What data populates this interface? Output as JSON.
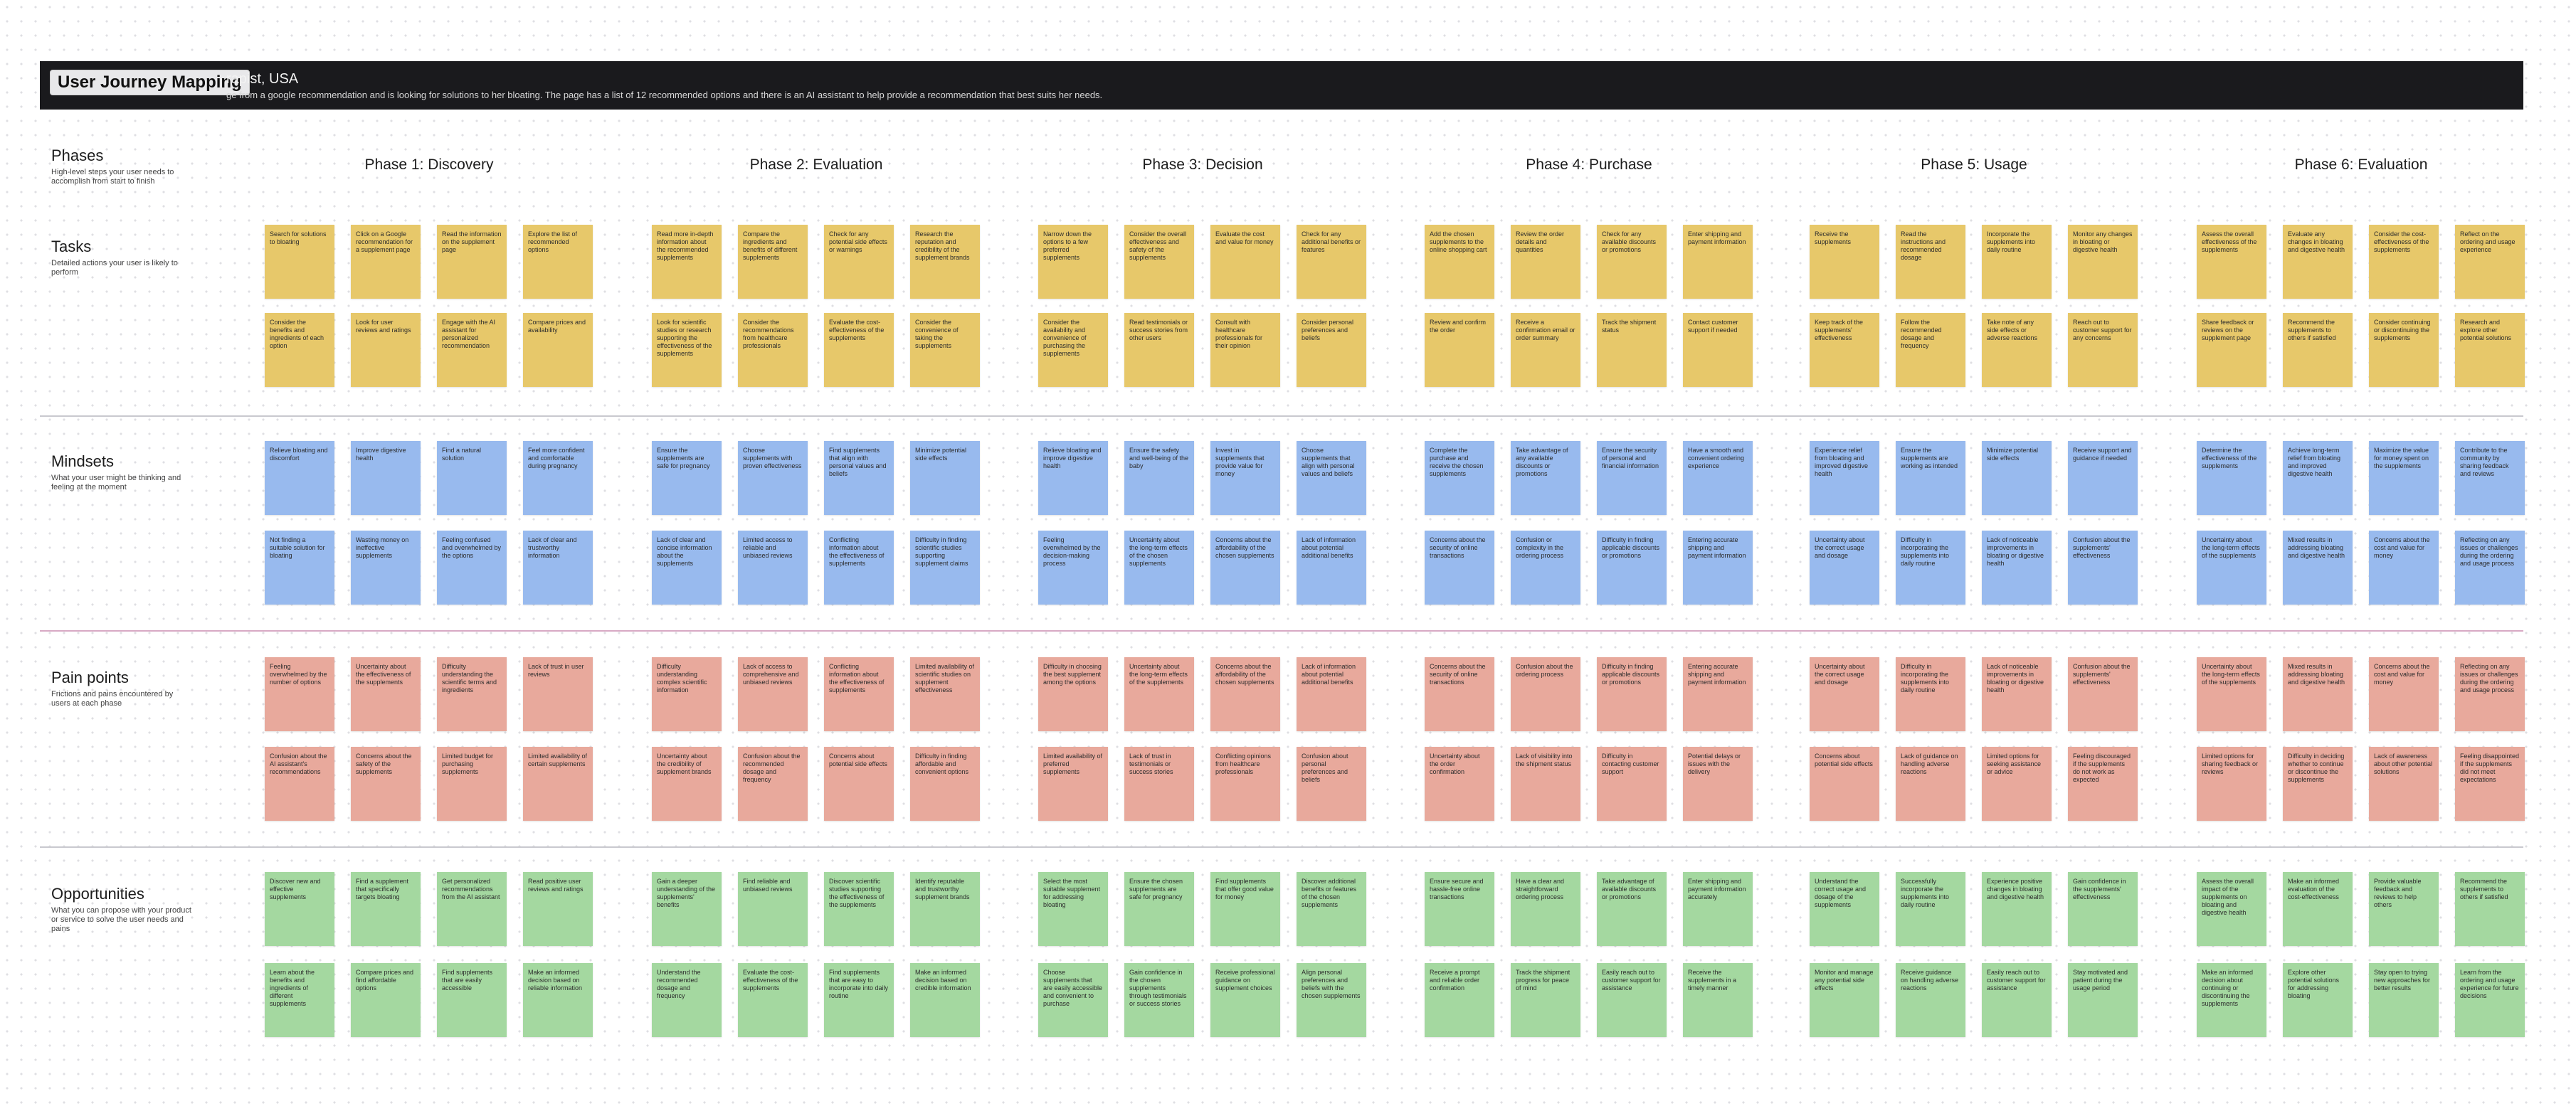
{
  "banner": {
    "title": "User Journey Mapping",
    "persona": "rapist, USA",
    "scenario": "ge from a google recommendation and is looking for solutions to her bloating. The page has a list of 12 recommended options and there is an AI assistant to help provide a recommendation that best suits her needs."
  },
  "colors": {
    "task": "#e7c86a",
    "mindset": "#98baee",
    "pain": "#e8a99c",
    "opportunity": "#a4d8a0",
    "banner": "#1a1a1d"
  },
  "rows": [
    {
      "title": "Phases",
      "desc": "High-level steps your user needs to accomplish from start to finish"
    },
    {
      "title": "Tasks",
      "desc": "Detailed actions your user is likely to perform"
    },
    {
      "title": "Mindsets",
      "desc": "What your user might be thinking and feeling at the moment"
    },
    {
      "title": "Pain points",
      "desc": "Frictions and pains encountered by users at each phase"
    },
    {
      "title": "Opportunities",
      "desc": "What you can propose with your product or service to solve the user needs and pains"
    }
  ],
  "phases": [
    {
      "name": "Phase 1: Discovery",
      "tasks": [
        "Search for solutions to bloating",
        "Click on a Google recommendation for a supplement page",
        "Read the information on the supplement page",
        "Explore the list of recommended options",
        "Consider the benefits and ingredients of each option",
        "Look for user reviews and ratings",
        "Engage with the AI assistant for personalized recommendation",
        "Compare prices and availability"
      ],
      "mindsets": [
        "Relieve bloating and discomfort",
        "Improve digestive health",
        "Find a natural solution",
        "Feel more confident and comfortable during pregnancy",
        "Not finding a suitable solution for bloating",
        "Wasting money on ineffective supplements",
        "Feeling confused and overwhelmed by the options",
        "Lack of clear and trustworthy information"
      ],
      "pains": [
        "Feeling overwhelmed by the number of options",
        "Uncertainty about the effectiveness of the supplements",
        "Difficulty understanding the scientific terms and ingredients",
        "Lack of trust in user reviews",
        "Confusion about the AI assistant's recommendations",
        "Concerns about the safety of the supplements",
        "Limited budget for purchasing supplements",
        "Limited availability of certain supplements"
      ],
      "opps": [
        "Discover new and effective supplements",
        "Find a supplement that specifically targets bloating",
        "Get personalized recommendations from the AI assistant",
        "Read positive user reviews and ratings",
        "Learn about the benefits and ingredients of different supplements",
        "Compare prices and find affordable options",
        "Find supplements that are easily accessible",
        "Make an informed decision based on reliable information"
      ]
    },
    {
      "name": "Phase 2: Evaluation",
      "tasks": [
        "Read more in-depth information about the recommended supplements",
        "Compare the ingredients and benefits of different supplements",
        "Check for any potential side effects or warnings",
        "Research the reputation and credibility of the supplement brands",
        "Look for scientific studies or research supporting the effectiveness of the supplements",
        "Consider the recommendations from healthcare professionals",
        "Evaluate the cost-effectiveness of the supplements",
        "Consider the convenience of taking the supplements"
      ],
      "mindsets": [
        "Ensure the supplements are safe for pregnancy",
        "Choose supplements with proven effectiveness",
        "Find supplements that align with personal values and beliefs",
        "Minimize potential side effects",
        "Lack of clear and concise information about the supplements",
        "Limited access to reliable and unbiased reviews",
        "Conflicting information about the effectiveness of supplements",
        "Difficulty in finding scientific studies supporting supplement claims"
      ],
      "pains": [
        "Difficulty understanding complex scientific information",
        "Lack of access to comprehensive and unbiased reviews",
        "Conflicting information about the effectiveness of supplements",
        "Limited availability of scientific studies on supplement effectiveness",
        "Uncertainty about the credibility of supplement brands",
        "Confusion about the recommended dosage and frequency",
        "Concerns about potential side effects",
        "Difficulty in finding affordable and convenient options"
      ],
      "opps": [
        "Gain a deeper understanding of the supplements' benefits",
        "Find reliable and unbiased reviews",
        "Discover scientific studies supporting the effectiveness of the supplements",
        "Identify reputable and trustworthy supplement brands",
        "Understand the recommended dosage and frequency",
        "Evaluate the cost-effectiveness of the supplements",
        "Find supplements that are easy to incorporate into daily routine",
        "Make an informed decision based on credible information"
      ]
    },
    {
      "name": "Phase 3: Decision",
      "tasks": [
        "Narrow down the options to a few preferred supplements",
        "Consider the overall effectiveness and safety of the supplements",
        "Evaluate the cost and value for money",
        "Check for any additional benefits or features",
        "Consider the availability and convenience of purchasing the supplements",
        "Read testimonials or success stories from other users",
        "Consult with healthcare professionals for their opinion",
        "Consider personal preferences and beliefs"
      ],
      "mindsets": [
        "Relieve bloating and improve digestive health",
        "Ensure the safety and well-being of the baby",
        "Invest in supplements that provide value for money",
        "Choose supplements that align with personal values and beliefs",
        "Feeling overwhelmed by the decision-making process",
        "Uncertainty about the long-term effects of the chosen supplements",
        "Concerns about the affordability of the chosen supplements",
        "Lack of information about potential additional benefits"
      ],
      "pains": [
        "Difficulty in choosing the best supplement among the options",
        "Uncertainty about the long-term effects of the supplements",
        "Concerns about the affordability of the chosen supplements",
        "Lack of information about potential additional benefits",
        "Limited availability of preferred supplements",
        "Lack of trust in testimonials or success stories",
        "Conflicting opinions from healthcare professionals",
        "Confusion about personal preferences and beliefs"
      ],
      "opps": [
        "Select the most suitable supplement for addressing bloating",
        "Ensure the chosen supplements are safe for pregnancy",
        "Find supplements that offer good value for money",
        "Discover additional benefits or features of the chosen supplements",
        "Choose supplements that are easily accessible and convenient to purchase",
        "Gain confidence in the chosen supplements through testimonials or success stories",
        "Receive professional guidance on supplement choices",
        "Align personal preferences and beliefs with the chosen supplements"
      ]
    },
    {
      "name": "Phase 4: Purchase",
      "tasks": [
        "Add the chosen supplements to the online shopping cart",
        "Review the order details and quantities",
        "Check for any available discounts or promotions",
        "Enter shipping and payment information",
        "Review and confirm the order",
        "Receive a confirmation email or order summary",
        "Track the shipment status",
        "Contact customer support if needed"
      ],
      "mindsets": [
        "Complete the purchase and receive the chosen supplements",
        "Take advantage of any available discounts or promotions",
        "Ensure the security of personal and financial information",
        "Have a smooth and convenient ordering experience",
        "Concerns about the security of online transactions",
        "Confusion or complexity in the ordering process",
        "Difficulty in finding applicable discounts or promotions",
        "Entering accurate shipping and payment information"
      ],
      "pains": [
        "Concerns about the security of online transactions",
        "Confusion about the ordering process",
        "Difficulty in finding applicable discounts or promotions",
        "Entering accurate shipping and payment information",
        "Uncertainty about the order confirmation",
        "Lack of visibility into the shipment status",
        "Difficulty in contacting customer support",
        "Potential delays or issues with the delivery"
      ],
      "opps": [
        "Ensure secure and hassle-free online transactions",
        "Have a clear and straightforward ordering process",
        "Take advantage of available discounts or promotions",
        "Enter shipping and payment information accurately",
        "Receive a prompt and reliable order confirmation",
        "Track the shipment progress for peace of mind",
        "Easily reach out to customer support for assistance",
        "Receive the supplements in a timely manner"
      ]
    },
    {
      "name": "Phase 5: Usage",
      "tasks": [
        "Receive the supplements",
        "Read the instructions and recommended dosage",
        "Incorporate the supplements into daily routine",
        "Monitor any changes in bloating or digestive health",
        "Keep track of the supplements' effectiveness",
        "Follow the recommended dosage and frequency",
        "Take note of any side effects or adverse reactions",
        "Reach out to customer support for any concerns"
      ],
      "mindsets": [
        "Experience relief from bloating and improved digestive health",
        "Ensure the supplements are working as intended",
        "Minimize potential side effects",
        "Receive support and guidance if needed",
        "Uncertainty about the correct usage and dosage",
        "Difficulty in incorporating the supplements into daily routine",
        "Lack of noticeable improvements in bloating or digestive health",
        "Confusion about the supplements' effectiveness"
      ],
      "pains": [
        "Uncertainty about the correct usage and dosage",
        "Difficulty in incorporating the supplements into daily routine",
        "Lack of noticeable improvements in bloating or digestive health",
        "Confusion about the supplements' effectiveness",
        "Concerns about potential side effects",
        "Lack of guidance on handling adverse reactions",
        "Limited options for seeking assistance or advice",
        "Feeling discouraged if the supplements do not work as expected"
      ],
      "opps": [
        "Understand the correct usage and dosage of the supplements",
        "Successfully incorporate the supplements into daily routine",
        "Experience positive changes in bloating and digestive health",
        "Gain confidence in the supplements' effectiveness",
        "Monitor and manage any potential side effects",
        "Receive guidance on handling adverse reactions",
        "Easily reach out to customer support for assistance",
        "Stay motivated and patient during the usage period"
      ]
    },
    {
      "name": "Phase 6: Evaluation",
      "tasks": [
        "Assess the overall effectiveness of the supplements",
        "Evaluate any changes in bloating and digestive health",
        "Consider the cost-effectiveness of the supplements",
        "Reflect on the ordering and usage experience",
        "Share feedback or reviews on the supplement page",
        "Recommend the supplements to others if satisfied",
        "Consider continuing or discontinuing the supplements",
        "Research and explore other potential solutions"
      ],
      "mindsets": [
        "Determine the effectiveness of the supplements",
        "Achieve long-term relief from bloating and improved digestive health",
        "Maximize the value for money spent on the supplements",
        "Contribute to the community by sharing feedback and reviews",
        "Uncertainty about the long-term effects of the supplements",
        "Mixed results in addressing bloating and digestive health",
        "Concerns about the cost and value for money",
        "Reflecting on any issues or challenges during the ordering and usage process"
      ],
      "pains": [
        "Uncertainty about the long-term effects of the supplements",
        "Mixed results in addressing bloating and digestive health",
        "Concerns about the cost and value for money",
        "Reflecting on any issues or challenges during the ordering and usage process",
        "Limited options for sharing feedback or reviews",
        "Difficulty in deciding whether to continue or discontinue the supplements",
        "Lack of awareness about other potential solutions",
        "Feeling disappointed if the supplements did not meet expectations"
      ],
      "opps": [
        "Assess the overall impact of the supplements on bloating and digestive health",
        "Make an informed evaluation of the cost-effectiveness",
        "Provide valuable feedback and reviews to help others",
        "Recommend the supplements to others if satisfied",
        "Make an informed decision about continuing or discontinuing the supplements",
        "Explore other potential solutions for addressing bloating",
        "Stay open to trying new approaches for better results",
        "Learn from the ordering and usage experience for future decisions"
      ]
    }
  ]
}
